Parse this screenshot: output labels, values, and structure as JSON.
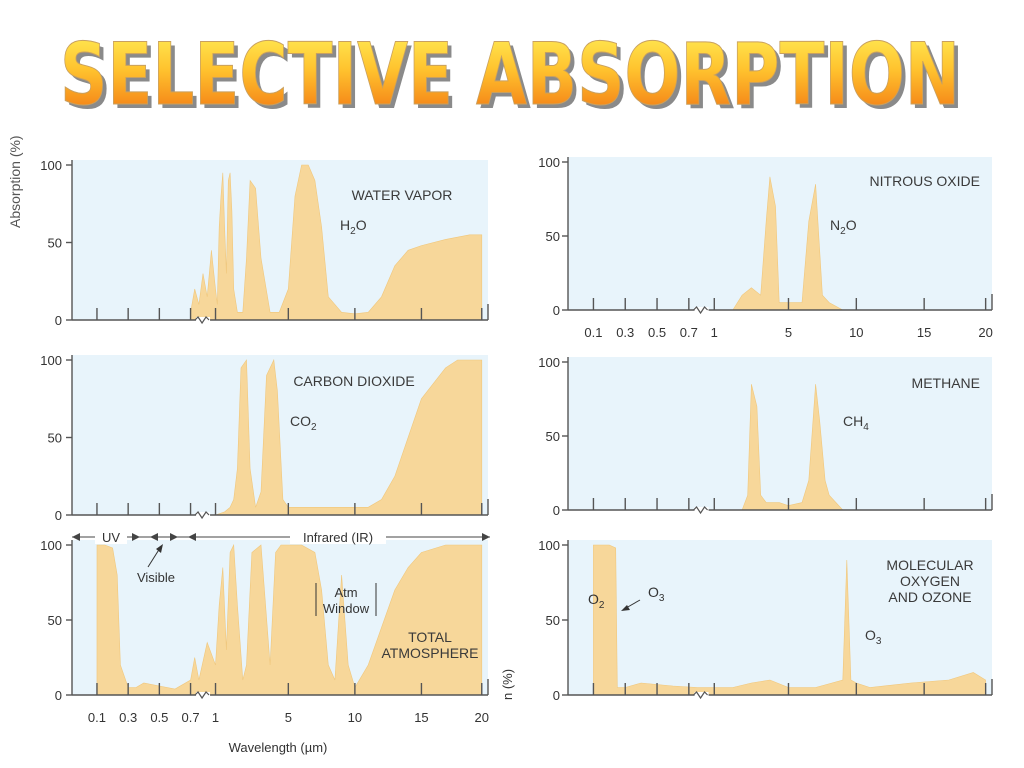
{
  "title": "SELECTIVE ABSORPTION",
  "colors": {
    "plot_background": "#e8f4fb",
    "absorption_fill": "#f7d79a",
    "title_gradient_top": "#ffe34a",
    "title_gradient_bottom": "#f07a10",
    "title_outline": "#7a7a7a"
  },
  "y_axis_label": "Absorption (%)",
  "x_axis_label": "Wavelength (µm)",
  "right_axis_fragment": "n (%)",
  "y_ticks": [
    "100",
    "50",
    "0"
  ],
  "x_ticks": [
    "0.1",
    "0.3",
    "0.5",
    "0.7",
    "1",
    "5",
    "10",
    "15",
    "20"
  ],
  "annotations": {
    "uv": "UV",
    "visible": "Visible",
    "infrared": "Infrared (IR)",
    "atm_window_1": "Atm",
    "atm_window_2": "Window",
    "o2": "O",
    "o2_sub": "2",
    "o3_arrow": "O",
    "o3_arrow_sub": "3"
  },
  "chart_data": [
    {
      "type": "area",
      "name": "WATER VAPOR",
      "formula": "H",
      "formula_sub": "2",
      "formula_end": "O",
      "x_scale": "broken: log 0.1-1 then linear 1-20",
      "ylim": [
        0,
        100
      ],
      "x": [
        0.7,
        0.75,
        0.8,
        0.85,
        0.9,
        0.95,
        1.0,
        1.1,
        1.2,
        1.3,
        1.4,
        1.5,
        1.6,
        1.7,
        1.8,
        1.9,
        2.0,
        2.2,
        2.5,
        2.7,
        2.9,
        3.2,
        3.5,
        4.0,
        4.5,
        5.0,
        5.5,
        6.0,
        6.5,
        7.0,
        7.5,
        8.0,
        9.0,
        10.0,
        11.0,
        12.0,
        13.0,
        14.0,
        15.0,
        17.0,
        19.0,
        20.0
      ],
      "y": [
        5,
        20,
        10,
        30,
        15,
        45,
        20,
        10,
        60,
        80,
        95,
        60,
        30,
        90,
        95,
        70,
        20,
        5,
        5,
        40,
        90,
        85,
        40,
        5,
        5,
        20,
        80,
        100,
        100,
        90,
        60,
        15,
        5,
        4,
        5,
        15,
        35,
        45,
        48,
        52,
        55,
        55
      ]
    },
    {
      "type": "area",
      "name": "CARBON DIOXIDE",
      "formula": "CO",
      "formula_sub": "2",
      "formula_end": "",
      "ylim": [
        0,
        100
      ],
      "x": [
        1.0,
        1.5,
        1.8,
        2.0,
        2.2,
        2.4,
        2.7,
        2.9,
        3.2,
        3.5,
        3.8,
        4.2,
        4.4,
        4.7,
        5.0,
        6.0,
        8.0,
        10.0,
        11.0,
        12.0,
        13.0,
        14.0,
        15.0,
        17.0,
        18.0,
        20.0
      ],
      "y": [
        0,
        2,
        5,
        10,
        30,
        95,
        100,
        30,
        5,
        15,
        90,
        100,
        80,
        10,
        5,
        5,
        5,
        5,
        5,
        10,
        25,
        50,
        75,
        95,
        100,
        100
      ]
    },
    {
      "type": "area",
      "name": "TOTAL ATMOSPHERE",
      "name_line1": "TOTAL",
      "name_line2": "ATMOSPHERE",
      "ylim": [
        0,
        100
      ],
      "x": [
        0.1,
        0.15,
        0.2,
        0.23,
        0.25,
        0.3,
        0.35,
        0.4,
        0.5,
        0.6,
        0.7,
        0.75,
        0.8,
        0.9,
        1.0,
        1.2,
        1.4,
        1.6,
        1.8,
        2.0,
        2.2,
        2.5,
        2.7,
        3.0,
        3.5,
        4.0,
        4.3,
        4.6,
        5.0,
        5.5,
        6.0,
        7.0,
        7.5,
        8.0,
        8.5,
        9.0,
        9.5,
        10.0,
        11.0,
        12.0,
        13.0,
        14.0,
        15.0,
        17.0,
        20.0
      ],
      "y": [
        100,
        100,
        98,
        80,
        20,
        5,
        5,
        8,
        6,
        4,
        10,
        25,
        10,
        35,
        20,
        60,
        85,
        30,
        95,
        100,
        60,
        10,
        20,
        95,
        100,
        20,
        95,
        100,
        100,
        100,
        100,
        95,
        70,
        20,
        10,
        80,
        20,
        5,
        20,
        45,
        70,
        85,
        95,
        100,
        100
      ]
    },
    {
      "type": "area",
      "name": "NITROUS OXIDE",
      "formula": "N",
      "formula_sub": "2",
      "formula_end": "O",
      "ylim": [
        0,
        100
      ],
      "x": [
        1.0,
        2.0,
        2.5,
        3.0,
        3.5,
        3.8,
        4.0,
        4.3,
        4.5,
        5.0,
        6.0,
        6.5,
        7.0,
        7.5,
        8.0,
        9.0
      ],
      "y": [
        0,
        0,
        10,
        15,
        10,
        60,
        90,
        70,
        5,
        5,
        5,
        60,
        85,
        10,
        5,
        0
      ]
    },
    {
      "type": "area",
      "name": "METHANE",
      "formula": "CH",
      "formula_sub": "4",
      "formula_end": "",
      "ylim": [
        0,
        100
      ],
      "x": [
        1.0,
        2.5,
        2.8,
        3.0,
        3.3,
        3.5,
        3.8,
        4.5,
        5.0,
        6.0,
        6.5,
        7.0,
        7.3,
        7.7,
        8.0,
        9.0
      ],
      "y": [
        0,
        0,
        10,
        85,
        70,
        10,
        5,
        5,
        3,
        5,
        20,
        85,
        60,
        20,
        10,
        0
      ]
    },
    {
      "type": "area",
      "name": "MOLECULAR OXYGEN AND OZONE",
      "name_line1": "MOLECULAR",
      "name_line2": "OXYGEN",
      "name_line3": "AND OZONE",
      "formula": "O",
      "formula_sub": "3",
      "formula_end": "",
      "ylim": [
        0,
        100
      ],
      "x": [
        0.1,
        0.15,
        0.2,
        0.24,
        0.25,
        0.3,
        0.4,
        0.6,
        0.8,
        1.0,
        2.0,
        3.0,
        4.0,
        5.0,
        7.0,
        9.0,
        9.3,
        9.6,
        10.0,
        11.0,
        14.0,
        17.0,
        19.0,
        20.0
      ],
      "y": [
        100,
        100,
        100,
        98,
        5,
        5,
        8,
        6,
        5,
        5,
        5,
        8,
        10,
        5,
        5,
        10,
        90,
        10,
        8,
        5,
        8,
        10,
        15,
        10
      ]
    }
  ]
}
